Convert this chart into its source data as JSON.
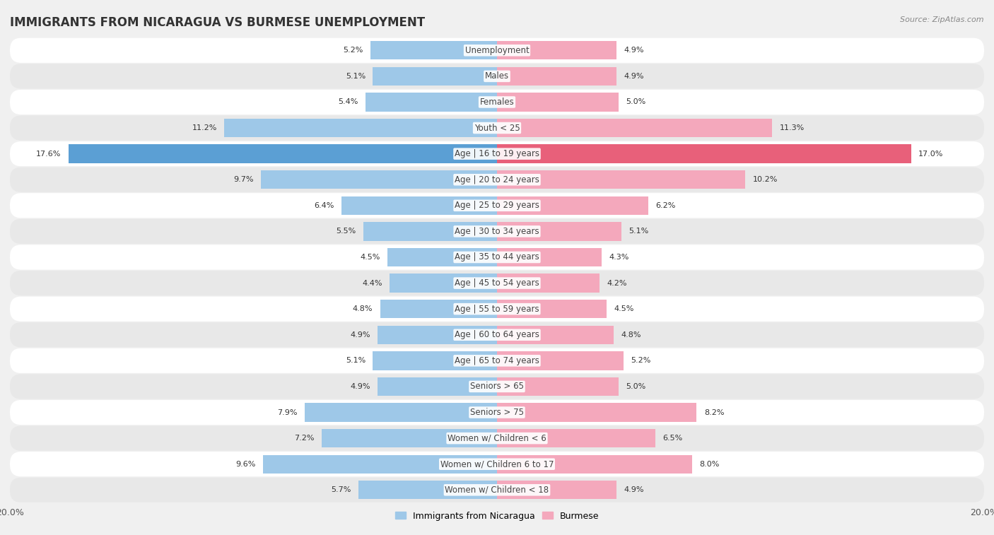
{
  "title": "IMMIGRANTS FROM NICARAGUA VS BURMESE UNEMPLOYMENT",
  "source": "Source: ZipAtlas.com",
  "categories": [
    "Unemployment",
    "Males",
    "Females",
    "Youth < 25",
    "Age | 16 to 19 years",
    "Age | 20 to 24 years",
    "Age | 25 to 29 years",
    "Age | 30 to 34 years",
    "Age | 35 to 44 years",
    "Age | 45 to 54 years",
    "Age | 55 to 59 years",
    "Age | 60 to 64 years",
    "Age | 65 to 74 years",
    "Seniors > 65",
    "Seniors > 75",
    "Women w/ Children < 6",
    "Women w/ Children 6 to 17",
    "Women w/ Children < 18"
  ],
  "nicaragua_values": [
    5.2,
    5.1,
    5.4,
    11.2,
    17.6,
    9.7,
    6.4,
    5.5,
    4.5,
    4.4,
    4.8,
    4.9,
    5.1,
    4.9,
    7.9,
    7.2,
    9.6,
    5.7
  ],
  "burmese_values": [
    4.9,
    4.9,
    5.0,
    11.3,
    17.0,
    10.2,
    6.2,
    5.1,
    4.3,
    4.2,
    4.5,
    4.8,
    5.2,
    5.0,
    8.2,
    6.5,
    8.0,
    4.9
  ],
  "nicaragua_color": "#9ec8e8",
  "burmese_color": "#f4a8bc",
  "nicaragua_highlight_color": "#5b9fd4",
  "burmese_highlight_color": "#e8607a",
  "axis_max": 20.0,
  "bar_height": 0.72,
  "background_color": "#f0f0f0",
  "row_color_light": "#ffffff",
  "row_color_dark": "#e8e8e8",
  "title_fontsize": 12,
  "label_fontsize": 8.5,
  "value_fontsize": 8,
  "legend_nicaragua": "Immigrants from Nicaragua",
  "legend_burmese": "Burmese"
}
